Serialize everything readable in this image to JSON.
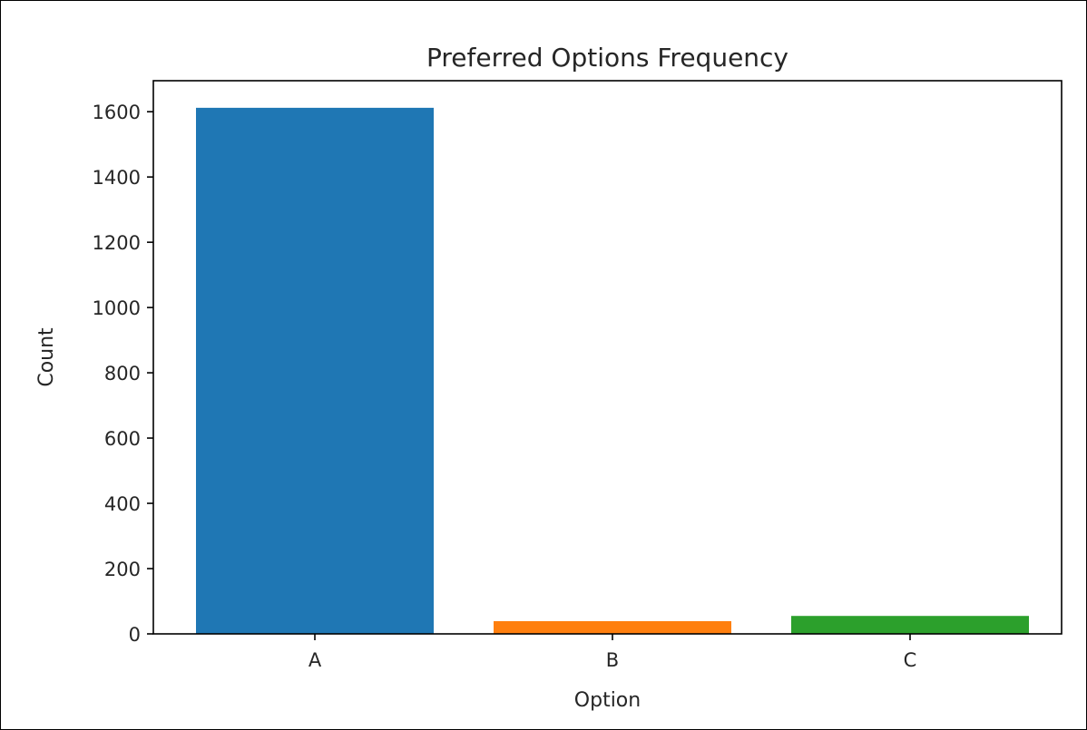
{
  "chart_data": {
    "type": "bar",
    "title": "Preferred Options Frequency",
    "xlabel": "Option",
    "ylabel": "Count",
    "categories": [
      "A",
      "B",
      "C"
    ],
    "values": [
      1612,
      39,
      55
    ],
    "bar_colors": [
      "#1f77b4",
      "#ff7f0e",
      "#2ca02c"
    ],
    "ylim": [
      0,
      1695
    ],
    "yticks": [
      0,
      200,
      400,
      600,
      800,
      1000,
      1200,
      1400,
      1600
    ],
    "grid": false,
    "legend": "none"
  }
}
